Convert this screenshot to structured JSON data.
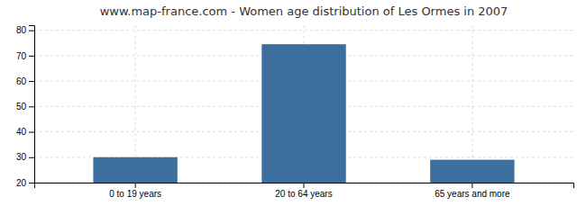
{
  "chart_data": {
    "type": "bar",
    "title": "www.map-france.com - Women age distribution of Les Ormes in 2007",
    "categories": [
      "0 to 19 years",
      "20 to 64 years",
      "65 years and more"
    ],
    "values": [
      30,
      74.5,
      29
    ],
    "color": "#3d6f9e",
    "ylim": [
      20,
      82
    ],
    "yticks": [
      20,
      30,
      40,
      50,
      60,
      70,
      80
    ],
    "grid": true
  }
}
